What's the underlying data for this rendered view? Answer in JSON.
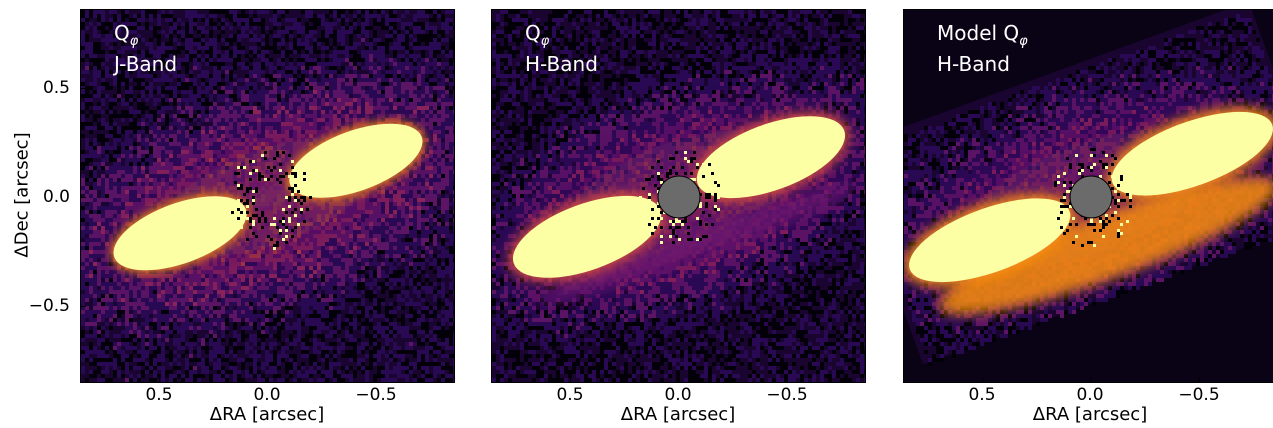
{
  "figure": {
    "colormap": [
      "#000004",
      "#2d0b59",
      "#6a176e",
      "#a52c60",
      "#dd513a",
      "#f98e09",
      "#fbd43b",
      "#fcffa4"
    ],
    "ylabel": "ΔDec [arcsec]",
    "yticks": [
      "0.5",
      "0.0",
      "−0.5"
    ]
  },
  "panels": [
    {
      "title": "Q",
      "subscript": "φ",
      "band": "J-Band",
      "xlabel": "ΔRA [arcsec]",
      "xticks": [
        "0.5",
        "0.0",
        "−0.5"
      ],
      "coronagraph": false
    },
    {
      "title": "Q",
      "subscript": "φ",
      "band": "H-Band",
      "xlabel": "ΔRA [arcsec]",
      "xticks": [
        "0.5",
        "0.0",
        "−0.5"
      ],
      "coronagraph": true
    },
    {
      "title": "Model Q",
      "subscript": "φ",
      "band": "H-Band",
      "xlabel": "ΔRA [arcsec]",
      "xticks": [
        "0.5",
        "0.0",
        "−0.5"
      ],
      "coronagraph": true
    }
  ],
  "chart_data": [
    {
      "type": "heatmap",
      "title": "Q_φ J-Band",
      "xlabel": "ΔRA [arcsec]",
      "ylabel": "ΔDec [arcsec]",
      "xlim": [
        0.85,
        -0.85
      ],
      "ylim": [
        -0.85,
        0.85
      ],
      "xticks": [
        0.5,
        0.0,
        -0.5
      ],
      "yticks": [
        0.5,
        0.0,
        -0.5
      ],
      "colormap": "inferno",
      "disk_position_angle_deg": 70,
      "disk_extent_arcsec": 0.75,
      "coronagraph_mask": false
    },
    {
      "type": "heatmap",
      "title": "Q_φ H-Band",
      "xlabel": "ΔRA [arcsec]",
      "xlim": [
        0.85,
        -0.85
      ],
      "ylim": [
        -0.85,
        0.85
      ],
      "xticks": [
        0.5,
        0.0,
        -0.5
      ],
      "colormap": "inferno",
      "disk_position_angle_deg": 70,
      "disk_extent_arcsec": 0.75,
      "coronagraph_mask": true,
      "mask_radius_arcsec": 0.09
    },
    {
      "type": "heatmap",
      "title": "Model Q_φ H-Band",
      "xlabel": "ΔRA [arcsec]",
      "xlim": [
        0.85,
        -0.85
      ],
      "ylim": [
        -0.85,
        0.85
      ],
      "xticks": [
        0.5,
        0.0,
        -0.5
      ],
      "colormap": "inferno",
      "disk_position_angle_deg": 70,
      "disk_extent_arcsec": 0.8,
      "coronagraph_mask": true,
      "mask_radius_arcsec": 0.09
    }
  ]
}
